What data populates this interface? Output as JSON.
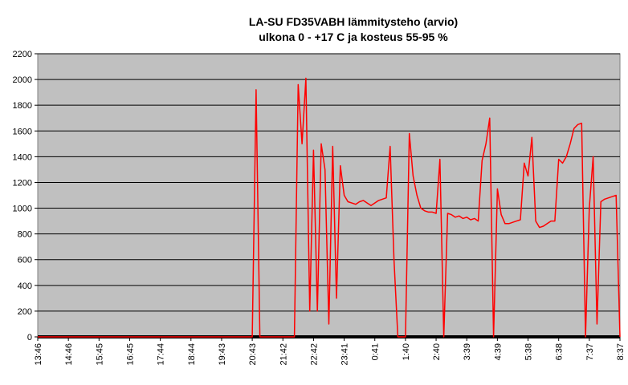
{
  "chart_data": {
    "type": "line",
    "title": "LA-SU FD35VABH lämmitysteho (arvio)",
    "subtitle": "ulkona 0 - +17 C ja kosteus 55-95 %",
    "categories": [
      "13:46",
      null,
      null,
      null,
      null,
      null,
      null,
      null,
      "14:46",
      null,
      null,
      null,
      null,
      null,
      null,
      null,
      "15:45",
      null,
      null,
      null,
      null,
      null,
      null,
      null,
      "16:45",
      null,
      null,
      null,
      null,
      null,
      null,
      null,
      "17:44",
      null,
      null,
      null,
      null,
      null,
      null,
      null,
      "18:44",
      null,
      null,
      null,
      null,
      null,
      null,
      null,
      "19:43",
      null,
      null,
      null,
      null,
      null,
      null,
      null,
      "20:43",
      null,
      null,
      null,
      null,
      null,
      null,
      null,
      "21:42",
      null,
      null,
      null,
      null,
      null,
      null,
      null,
      "22:42",
      null,
      null,
      null,
      null,
      null,
      null,
      null,
      "23:41",
      null,
      null,
      null,
      null,
      null,
      null,
      null,
      "0:41",
      null,
      null,
      null,
      null,
      null,
      null,
      null,
      "1:40",
      null,
      null,
      null,
      null,
      null,
      null,
      null,
      "2:40",
      null,
      null,
      null,
      null,
      null,
      null,
      null,
      "3:39",
      null,
      null,
      null,
      null,
      null,
      null,
      null,
      "4:39",
      null,
      null,
      null,
      null,
      null,
      null,
      null,
      "5:38",
      null,
      null,
      null,
      null,
      null,
      null,
      null,
      "6:38",
      null,
      null,
      null,
      null,
      null,
      null,
      null,
      "7:37",
      null,
      null,
      null,
      null,
      null,
      null,
      null,
      "8:37"
    ],
    "series": [
      {
        "color": "#ff0000",
        "values": [
          0,
          0,
          0,
          0,
          0,
          0,
          0,
          0,
          0,
          0,
          0,
          0,
          0,
          0,
          0,
          0,
          0,
          0,
          0,
          0,
          0,
          0,
          0,
          0,
          0,
          0,
          0,
          0,
          0,
          0,
          0,
          0,
          0,
          0,
          0,
          0,
          0,
          0,
          0,
          0,
          0,
          0,
          0,
          0,
          0,
          0,
          0,
          0,
          0,
          0,
          0,
          0,
          0,
          0,
          0,
          0,
          0,
          1920,
          0,
          0,
          0,
          0,
          0,
          0,
          0,
          0,
          0,
          0,
          1960,
          1500,
          2010,
          200,
          1450,
          200,
          1500,
          1300,
          100,
          1480,
          300,
          1330,
          1100,
          1050,
          1040,
          1030,
          1050,
          1060,
          1040,
          1020,
          1040,
          1060,
          1070,
          1080,
          1480,
          600,
          0,
          0,
          0,
          1580,
          1250,
          1100,
          1000,
          980,
          970,
          970,
          960,
          1380,
          0,
          960,
          950,
          930,
          940,
          920,
          930,
          910,
          920,
          900,
          1370,
          1500,
          1700,
          0,
          1150,
          950,
          880,
          880,
          890,
          900,
          910,
          1350,
          1250,
          1550,
          900,
          850,
          860,
          880,
          900,
          900,
          1380,
          1350,
          1400,
          1500,
          1620,
          1650,
          1660,
          0,
          1000,
          1400,
          100,
          1050,
          1070,
          1080,
          1090,
          1100,
          0
        ]
      }
    ],
    "ylim": [
      0,
      2200
    ],
    "yticks": [
      0,
      200,
      400,
      600,
      800,
      1000,
      1200,
      1400,
      1600,
      1800,
      2000,
      2200
    ],
    "grid": true
  }
}
